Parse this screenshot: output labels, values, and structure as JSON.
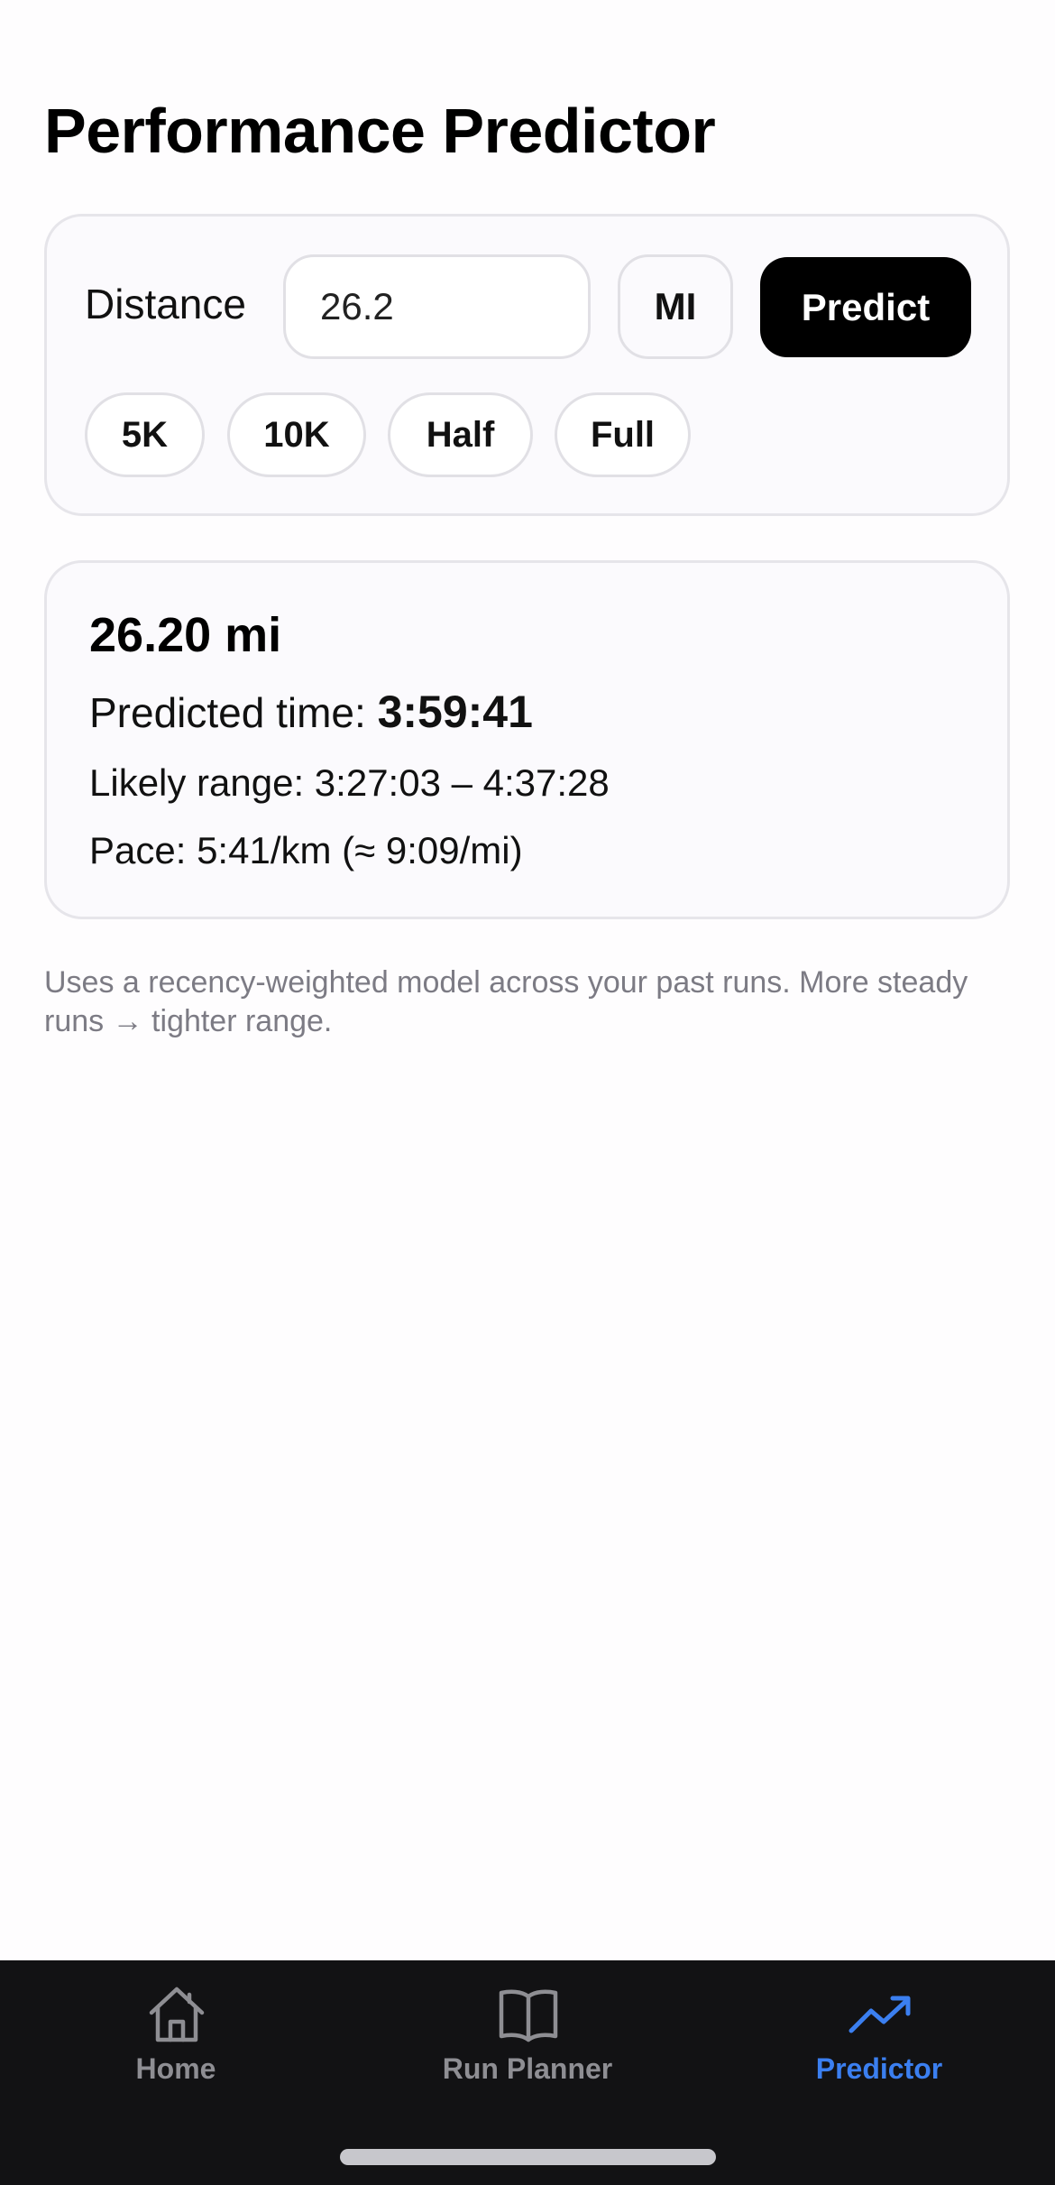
{
  "header": {
    "title": "Performance Predictor"
  },
  "input_card": {
    "distance_label": "Distance",
    "distance_value": "26.2",
    "unit_label": "MI",
    "predict_label": "Predict",
    "presets": [
      "5K",
      "10K",
      "Half",
      "Full"
    ]
  },
  "result_card": {
    "distance": "26.20 mi",
    "predicted_time_label": "Predicted time: ",
    "predicted_time_value": "3:59:41",
    "likely_range": "Likely range: 3:27:03 – 4:37:28",
    "pace": "Pace: 5:41/km (≈ 9:09/mi)"
  },
  "footnote": "Uses a recency-weighted model across your past runs. More steady runs → tighter range.",
  "tabbar": {
    "tabs": [
      {
        "label": "Home",
        "icon": "house-icon"
      },
      {
        "label": "Run Planner",
        "icon": "book-icon"
      },
      {
        "label": "Predictor",
        "icon": "trend-up-icon"
      }
    ],
    "active": "Predictor",
    "active_color": "#3b7ff0",
    "inactive_color": "#8e8e93"
  }
}
